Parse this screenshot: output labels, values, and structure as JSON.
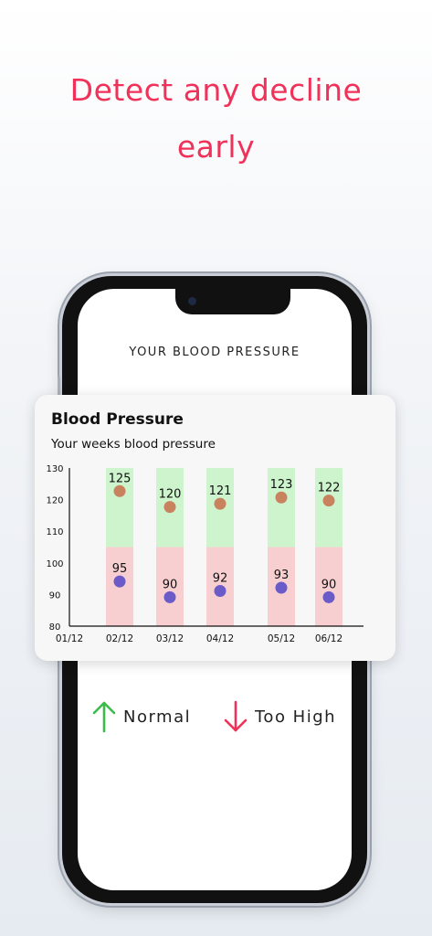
{
  "headline": {
    "line1": "Detect any decline",
    "line2": "early"
  },
  "screen": {
    "title": "YOUR BLOOD PRESSURE"
  },
  "card": {
    "title": "Blood Pressure",
    "subtitle": "Your weeks blood pressure"
  },
  "legend": {
    "normal": {
      "label": "Normal",
      "icon": "arrow-up-icon",
      "color": "#3dbb4a"
    },
    "too_high": {
      "label": "Too High",
      "icon": "arrow-down-icon",
      "color": "#f0325a"
    }
  },
  "chart_data": {
    "type": "bar",
    "title": "Blood Pressure",
    "subtitle": "Your weeks blood pressure",
    "y_ticks": [
      "130",
      "120",
      "110",
      "100",
      "90",
      "80"
    ],
    "x_ticks": [
      "01/12",
      "02/12",
      "03/12",
      "04/12",
      "05/12",
      "06/12"
    ],
    "ylim": [
      80,
      130
    ],
    "categories": [
      "02/12",
      "03/12",
      "04/12",
      "05/12",
      "06/12"
    ],
    "series": [
      {
        "values": [
          125,
          120,
          121,
          123,
          122
        ],
        "marker_color": "#c8825e"
      },
      {
        "values": [
          95,
          90,
          92,
          93,
          90
        ],
        "marker_color": "#6b5bc9"
      }
    ],
    "bands": {
      "upper_color": "#cdf4cc",
      "lower_color": "#f8cfd1",
      "split": 105
    },
    "grid": false
  }
}
